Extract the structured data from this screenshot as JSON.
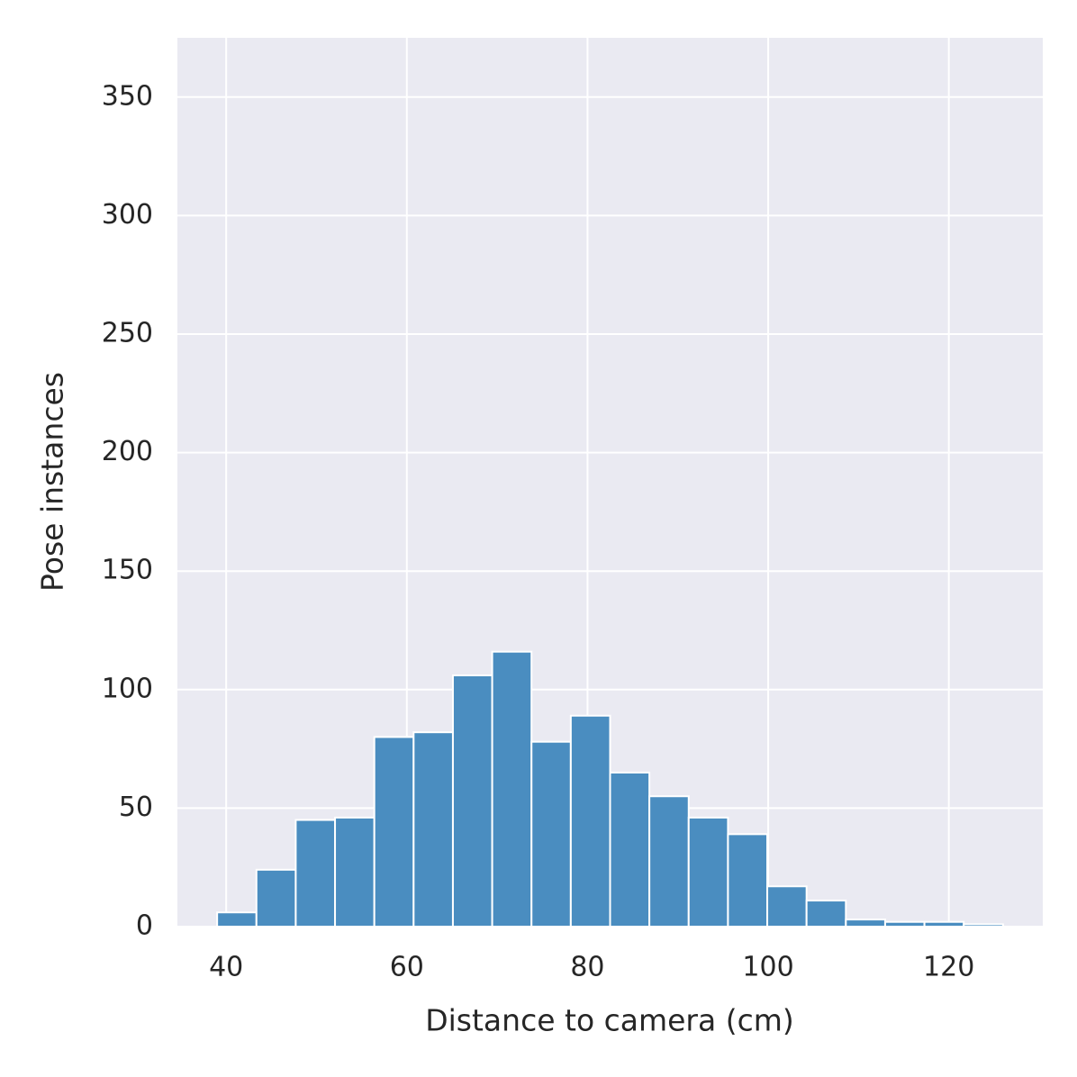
{
  "chart_data": {
    "type": "histogram",
    "x_label": "Distance to camera (cm)",
    "y_label": "Pose instances",
    "bins": [
      39,
      43.35,
      47.7,
      52.05,
      56.4,
      60.75,
      65.1,
      69.45,
      73.8,
      78.15,
      82.5,
      86.85,
      91.2,
      95.55,
      99.9,
      104.25,
      108.6,
      112.95,
      117.3,
      121.65,
      126
    ],
    "counts": [
      6,
      24,
      45,
      46,
      80,
      82,
      106,
      116,
      78,
      89,
      65,
      55,
      46,
      39,
      17,
      11,
      3,
      2,
      2,
      1
    ],
    "color": "#4a8dc0",
    "xlim": [
      34.6,
      130.4
    ],
    "xticks": [
      40,
      60,
      80,
      100,
      120
    ],
    "ylim": [
      0,
      375
    ],
    "yticks": [
      0,
      50,
      100,
      150,
      200,
      250,
      300,
      350
    ],
    "grid": true
  }
}
